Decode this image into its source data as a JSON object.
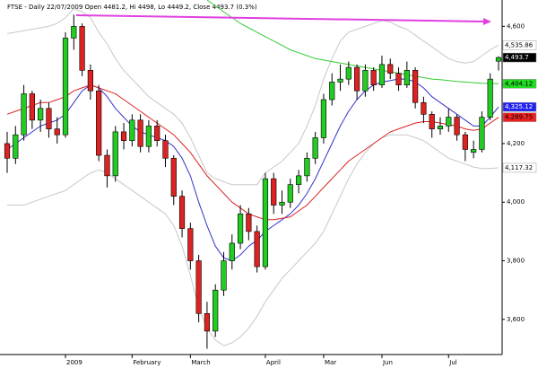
{
  "chart_data": {
    "type": "candlestick",
    "title": "FTSE - Daily 22/07/2009 Open 4481.2, Hi 4498, Lo 4449.2, Close 4493.7 (0.3%)",
    "categories": [
      null,
      null,
      null,
      null,
      null,
      null,
      null,
      "2009",
      null,
      null,
      null,
      null,
      null,
      null,
      null,
      "February",
      null,
      null,
      null,
      null,
      null,
      null,
      "March",
      null,
      null,
      null,
      null,
      null,
      null,
      null,
      null,
      "April",
      null,
      null,
      null,
      null,
      null,
      null,
      "Mar",
      null,
      null,
      null,
      null,
      null,
      null,
      "Jun",
      null,
      null,
      null,
      null,
      null,
      null,
      null,
      "Jul",
      null,
      null,
      null,
      null,
      null,
      null
    ],
    "open": [
      4200,
      4150,
      4230,
      4370,
      4280,
      4320,
      4250,
      4230,
      4560,
      4600,
      4450,
      4380,
      4160,
      4090,
      4240,
      4210,
      4280,
      4190,
      4260,
      4210,
      4150,
      4020,
      3910,
      3800,
      3620,
      3560,
      3700,
      3800,
      3860,
      3960,
      3900,
      3780,
      4080,
      3990,
      4000,
      4060,
      4090,
      4150,
      4220,
      4350,
      4410,
      4420,
      4460,
      4380,
      4450,
      4400,
      4470,
      4440,
      4400,
      4450,
      4340,
      4300,
      4250,
      4260,
      4290,
      4230,
      4170,
      4180,
      4290,
      4481.2
    ],
    "high": [
      4240,
      4260,
      4400,
      4380,
      4350,
      4340,
      4290,
      4580,
      4640,
      4610,
      4470,
      4400,
      4180,
      4260,
      4270,
      4300,
      4300,
      4280,
      4280,
      4230,
      4160,
      4040,
      3930,
      3820,
      3660,
      3720,
      3830,
      3890,
      3990,
      3980,
      3920,
      4100,
      4100,
      4040,
      4080,
      4110,
      4170,
      4240,
      4370,
      4440,
      4470,
      4480,
      4470,
      4470,
      4460,
      4500,
      4490,
      4460,
      4480,
      4460,
      4360,
      4310,
      4290,
      4320,
      4300,
      4240,
      4210,
      4310,
      4440,
      4498
    ],
    "low": [
      4100,
      4130,
      4210,
      4250,
      4240,
      4220,
      4200,
      4220,
      4520,
      4430,
      4350,
      4140,
      4050,
      4070,
      4180,
      4190,
      4170,
      4170,
      4190,
      4120,
      3990,
      3880,
      3770,
      3590,
      3500,
      3540,
      3680,
      3770,
      3840,
      3870,
      3760,
      3770,
      3960,
      3960,
      3980,
      4030,
      4070,
      4130,
      4200,
      4330,
      4380,
      4400,
      4350,
      4360,
      4380,
      4390,
      4420,
      4380,
      4390,
      4320,
      4270,
      4220,
      4230,
      4240,
      4210,
      4140,
      4150,
      4170,
      4280,
      4449.2
    ],
    "close": [
      4150,
      4230,
      4370,
      4280,
      4320,
      4250,
      4230,
      4560,
      4600,
      4450,
      4380,
      4160,
      4090,
      4240,
      4210,
      4280,
      4190,
      4260,
      4210,
      4150,
      4020,
      3910,
      3800,
      3620,
      3560,
      3700,
      3800,
      3860,
      3960,
      3900,
      3780,
      4080,
      3990,
      4000,
      4060,
      4090,
      4150,
      4220,
      4350,
      4410,
      4420,
      4460,
      4380,
      4450,
      4400,
      4470,
      4440,
      4400,
      4450,
      4340,
      4300,
      4250,
      4260,
      4290,
      4230,
      4180,
      4180,
      4290,
      4420,
      4493.7
    ],
    "close_label": "4,493.7",
    "up_color": "#22cc22",
    "down_color": "#dd2222",
    "series": [
      {
        "color": "#c8c8c8",
        "label_bg": "#ffffff",
        "label_text": "#000000",
        "last_label": "4,535.86",
        "values": [
          4575,
          4580,
          4585,
          4590,
          4595,
          4600,
          4610,
          4630,
          4660,
          4650,
          4630,
          4580,
          4540,
          4490,
          4450,
          4420,
          4390,
          4360,
          4340,
          4320,
          4300,
          4270,
          4220,
          4160,
          4100,
          4080,
          4070,
          4060,
          4060,
          4060,
          4060,
          4100,
          4120,
          4140,
          4170,
          4200,
          4260,
          4330,
          4420,
          4490,
          4550,
          4580,
          4590,
          4600,
          4610,
          4620,
          4615,
          4600,
          4590,
          4570,
          4550,
          4530,
          4510,
          4490,
          4480,
          4475,
          4480,
          4500,
          4520,
          4535.86
        ]
      },
      {
        "color": "#c8c8c8",
        "label_bg": "#ffffff",
        "label_text": "#000000",
        "last_label": "4,117.32",
        "values": [
          3990,
          3990,
          3990,
          4000,
          4010,
          4020,
          4030,
          4040,
          4060,
          4080,
          4100,
          4110,
          4100,
          4080,
          4060,
          4040,
          4020,
          4000,
          3980,
          3960,
          3920,
          3850,
          3750,
          3640,
          3570,
          3530,
          3510,
          3520,
          3540,
          3570,
          3610,
          3660,
          3700,
          3740,
          3770,
          3800,
          3830,
          3860,
          3900,
          3960,
          4020,
          4080,
          4130,
          4170,
          4200,
          4220,
          4230,
          4230,
          4230,
          4220,
          4210,
          4190,
          4170,
          4150,
          4140,
          4130,
          4120,
          4115,
          4115,
          4117.32
        ]
      },
      {
        "color": "#3333cc",
        "label_bg": "#2222ee",
        "label_text": "#ffffff",
        "last_label": "4,325.12",
        "values": [
          4180,
          4200,
          4220,
          4240,
          4260,
          4270,
          4280,
          4300,
          4340,
          4380,
          4400,
          4390,
          4360,
          4320,
          4290,
          4260,
          4240,
          4230,
          4220,
          4210,
          4190,
          4150,
          4090,
          4000,
          3920,
          3850,
          3810,
          3800,
          3820,
          3850,
          3870,
          3900,
          3920,
          3940,
          3960,
          3990,
          4030,
          4080,
          4140,
          4200,
          4260,
          4310,
          4350,
          4380,
          4400,
          4410,
          4415,
          4420,
          4420,
          4410,
          4390,
          4360,
          4340,
          4320,
          4300,
          4280,
          4260,
          4260,
          4290,
          4325.12
        ]
      },
      {
        "color": "#dd2222",
        "label_bg": "#ee2222",
        "label_text": "#000000",
        "last_label": "4,289.75",
        "values": [
          4300,
          4310,
          4320,
          4330,
          4340,
          4340,
          4350,
          4360,
          4380,
          4390,
          4400,
          4390,
          4380,
          4370,
          4350,
          4330,
          4310,
          4290,
          4270,
          4250,
          4230,
          4200,
          4170,
          4130,
          4090,
          4060,
          4030,
          4000,
          3980,
          3960,
          3950,
          3940,
          3940,
          3945,
          3950,
          3970,
          3990,
          4020,
          4050,
          4080,
          4110,
          4140,
          4160,
          4180,
          4200,
          4220,
          4240,
          4250,
          4260,
          4270,
          4275,
          4275,
          4270,
          4265,
          4260,
          4250,
          4245,
          4250,
          4270,
          4289.75
        ]
      },
      {
        "color": "#33cc33",
        "label_bg": "#22dd22",
        "label_text": "#000000",
        "last_label": "4,404.12",
        "values": [
          null,
          null,
          null,
          null,
          null,
          null,
          null,
          null,
          null,
          null,
          null,
          null,
          null,
          null,
          null,
          null,
          null,
          null,
          null,
          null,
          null,
          null,
          null,
          null,
          4690,
          4670,
          4650,
          4630,
          4610,
          4595,
          4580,
          4565,
          4550,
          4535,
          4520,
          4510,
          4500,
          4490,
          4485,
          4480,
          4475,
          4470,
          4465,
          4460,
          4455,
          4450,
          4445,
          4440,
          4435,
          4430,
          4425,
          4420,
          4418,
          4415,
          4412,
          4410,
          4408,
          4406,
          4405,
          4404.12
        ]
      }
    ],
    "ylim": [
      3480,
      4690
    ],
    "yticks": [
      {
        "value": 3600,
        "label": "3,600"
      },
      {
        "value": 3800,
        "label": "3,800"
      },
      {
        "value": 4000,
        "label": "4,000"
      },
      {
        "value": 4200,
        "label": "4,200"
      },
      {
        "value": 4400,
        "label": "4,400"
      },
      {
        "value": 4600,
        "label": "4,600"
      }
    ]
  }
}
